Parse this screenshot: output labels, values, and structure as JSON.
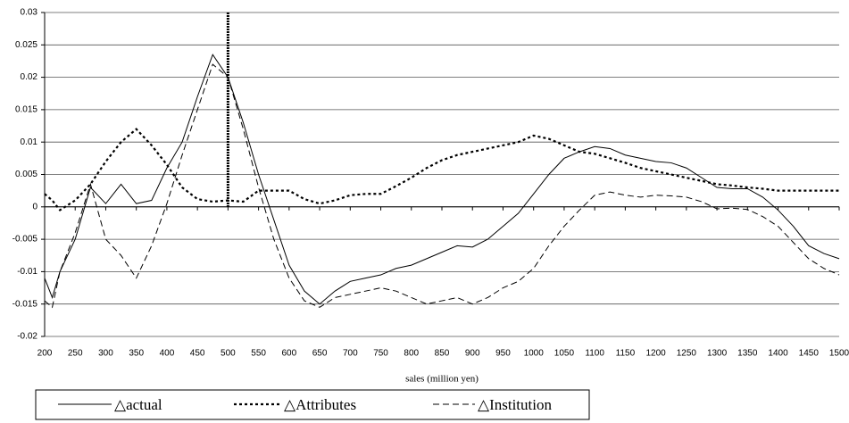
{
  "chart_data": {
    "type": "line",
    "x_label": "sales (million yen)",
    "xlim": [
      200,
      1500
    ],
    "ylim": [
      -0.02,
      0.03
    ],
    "xticks": [
      200,
      250,
      300,
      350,
      400,
      450,
      500,
      550,
      600,
      650,
      700,
      750,
      800,
      850,
      900,
      950,
      1000,
      1050,
      1100,
      1150,
      1200,
      1250,
      1300,
      1350,
      1400,
      1450,
      1500
    ],
    "yticks": [
      -0.02,
      -0.015,
      -0.01,
      -0.005,
      0,
      0.005,
      0.01,
      0.015,
      0.02,
      0.025,
      0.03
    ],
    "grid": true,
    "reference_x": 500,
    "x": [
      200,
      212.5,
      225,
      250,
      275,
      300,
      325,
      350,
      375,
      400,
      425,
      450,
      475,
      500,
      525,
      550,
      575,
      600,
      625,
      650,
      675,
      700,
      725,
      750,
      775,
      800,
      825,
      850,
      875,
      900,
      925,
      950,
      975,
      1000,
      1025,
      1050,
      1075,
      1100,
      1125,
      1150,
      1175,
      1200,
      1225,
      1250,
      1275,
      1300,
      1325,
      1350,
      1375,
      1400,
      1425,
      1450,
      1475,
      1500
    ],
    "series": [
      {
        "name": "△actual",
        "color": "#000000",
        "style": "solid",
        "values": [
          -0.011,
          -0.014,
          -0.01,
          -0.005,
          0.003,
          0.0005,
          0.0035,
          0.0005,
          0.001,
          0.006,
          0.01,
          0.017,
          0.0235,
          0.02,
          0.013,
          0.005,
          -0.002,
          -0.009,
          -0.013,
          -0.015,
          -0.013,
          -0.0115,
          -0.011,
          -0.0105,
          -0.0095,
          -0.009,
          -0.008,
          -0.007,
          -0.006,
          -0.0062,
          -0.005,
          -0.003,
          -0.001,
          0.002,
          0.005,
          0.0075,
          0.0085,
          0.0093,
          0.009,
          0.008,
          0.0075,
          0.007,
          0.0068,
          0.006,
          0.0045,
          0.003,
          0.0028,
          0.0028,
          0.0015,
          -0.0005,
          -0.003,
          -0.006,
          -0.0072,
          -0.008
        ]
      },
      {
        "name": "△Attributes",
        "color": "#000000",
        "style": "dotted",
        "values": [
          0.002,
          0.001,
          -0.0005,
          0.001,
          0.0035,
          0.007,
          0.01,
          0.012,
          0.0095,
          0.0065,
          0.003,
          0.0012,
          0.0008,
          0.001,
          0.0008,
          0.0025,
          0.0025,
          0.0025,
          0.0012,
          0.0005,
          0.001,
          0.0018,
          0.002,
          0.002,
          0.0032,
          0.0045,
          0.006,
          0.0072,
          0.008,
          0.0085,
          0.009,
          0.0095,
          0.01,
          0.011,
          0.0105,
          0.0095,
          0.0085,
          0.0082,
          0.0075,
          0.0068,
          0.006,
          0.0055,
          0.005,
          0.0045,
          0.004,
          0.0035,
          0.0033,
          0.003,
          0.0028,
          0.0025,
          0.0025,
          0.0025,
          0.0025,
          0.0025
        ]
      },
      {
        "name": "△Institution",
        "color": "#000000",
        "style": "dashed",
        "values": [
          -0.0145,
          -0.0155,
          -0.01,
          -0.004,
          0.0035,
          -0.005,
          -0.0075,
          -0.011,
          -0.006,
          0.0005,
          0.008,
          0.015,
          0.022,
          0.02,
          0.012,
          0.003,
          -0.005,
          -0.011,
          -0.0145,
          -0.0155,
          -0.014,
          -0.0135,
          -0.013,
          -0.0125,
          -0.013,
          -0.014,
          -0.015,
          -0.0145,
          -0.014,
          -0.015,
          -0.014,
          -0.0125,
          -0.0115,
          -0.0095,
          -0.006,
          -0.003,
          -0.0005,
          0.0018,
          0.0023,
          0.0018,
          0.0015,
          0.0018,
          0.0017,
          0.0015,
          0.0008,
          -0.0003,
          -0.0002,
          -0.0004,
          -0.0015,
          -0.003,
          -0.0055,
          -0.008,
          -0.0095,
          -0.0105
        ]
      }
    ]
  }
}
